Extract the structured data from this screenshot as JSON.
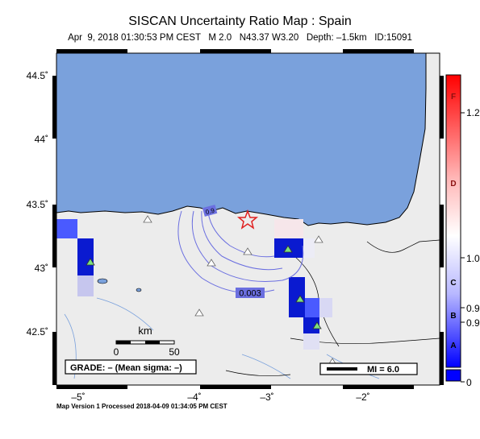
{
  "title": "SISCAN Uncertainty Ratio Map : Spain",
  "subtitle": "Apr  9, 2018 01:30:53 PM CEST   M 2.0   N43.37 W3.20   Depth: –1.5km   ID:15091",
  "footer": "Map Version 1 Processed 2018-04-09 01:34:05 PM CEST",
  "map": {
    "lat_ticks": [
      "44.5˚",
      "44˚",
      "43.5˚",
      "43˚",
      "42.5˚"
    ],
    "lon_ticks": [
      "–5˚",
      "–4˚",
      "–3˚",
      "–2˚"
    ],
    "contour_labels": [
      "0.003",
      "0.9"
    ],
    "scale_bar": {
      "unit": "km",
      "start": "0",
      "end": "50"
    },
    "grade_box": "GRADE: – (Mean sigma: –)",
    "mi_legend": "MI = 6.0",
    "colors": {
      "sea": "#7aa1dc",
      "land": "#ececec",
      "border": "#000000",
      "contour": "#6b6fe0",
      "star": "#e02020",
      "station_fill": "#7de07d"
    }
  },
  "colorbar": {
    "grade_letters": [
      "F",
      "D",
      "C",
      "B",
      "A"
    ],
    "values": [
      "1.2",
      "1.0",
      "0.9",
      "0.9",
      "0"
    ]
  }
}
